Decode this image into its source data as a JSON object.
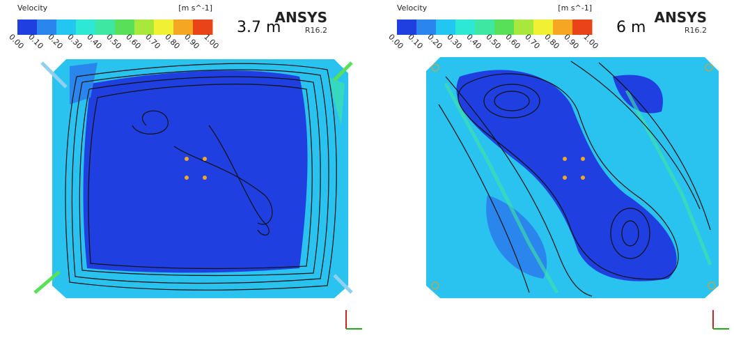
{
  "panels": [
    {
      "legend": {
        "title": "Velocity",
        "unit": "[m s^-1]",
        "ticks": [
          "0.00",
          "0.10",
          "0.20",
          "0.30",
          "0.40",
          "0.50",
          "0.60",
          "0.70",
          "0.80",
          "0.90",
          "1.00"
        ],
        "colors": [
          "#1f3fe0",
          "#2a86ec",
          "#22c6f0",
          "#2ee8d6",
          "#3fe8a2",
          "#58e058",
          "#a8e83c",
          "#f2f032",
          "#f5a622",
          "#e84418"
        ]
      },
      "depth": "3.7 m",
      "brand": "ANSYS",
      "version": "R16.2"
    },
    {
      "legend": {
        "title": "Velocity",
        "unit": "[m s^-1]",
        "ticks": [
          "0.00",
          "0.10",
          "0.20",
          "0.30",
          "0.40",
          "0.50",
          "0.60",
          "0.70",
          "0.80",
          "0.90",
          "1.00"
        ],
        "colors": [
          "#1f3fe0",
          "#2a86ec",
          "#22c6f0",
          "#2ee8d6",
          "#3fe8a2",
          "#58e058",
          "#a8e83c",
          "#f2f032",
          "#f5a622",
          "#e84418"
        ]
      },
      "depth": "6 m",
      "brand": "ANSYS",
      "version": "R16.2"
    }
  ]
}
